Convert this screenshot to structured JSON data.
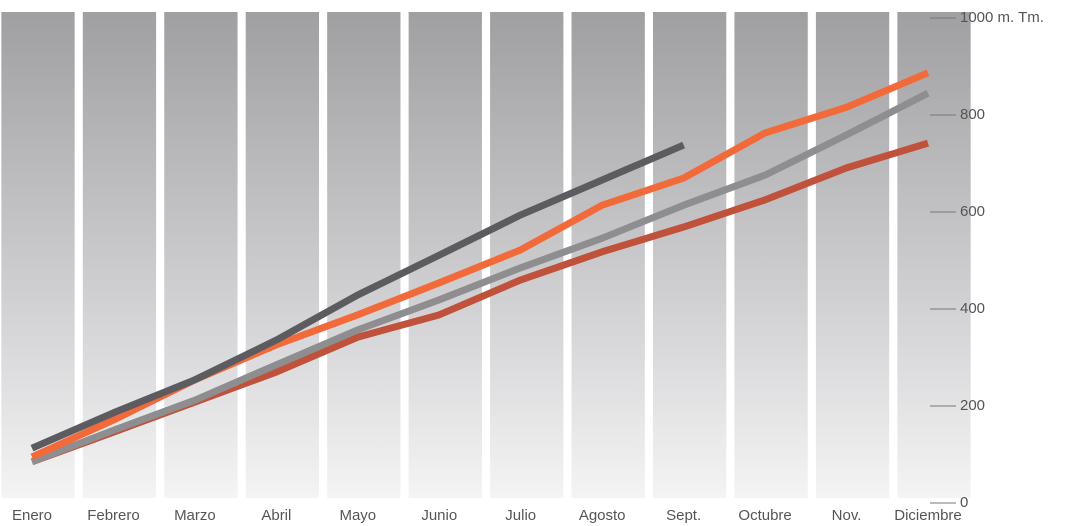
{
  "chart_data": {
    "type": "line",
    "categories": [
      "Enero",
      "Febrero",
      "Marzo",
      "Abril",
      "Mayo",
      "Junio",
      "Julio",
      "Agosto",
      "Sept.",
      "Octubre",
      "Nov.",
      "Diciembre"
    ],
    "series": [
      {
        "color": "#c0513a",
        "values": [
          85,
          146,
          208,
          270,
          342,
          388,
          460,
          518,
          569,
          625,
          691,
          742
        ]
      },
      {
        "color": "#8e8e90",
        "values": [
          85,
          150,
          212,
          285,
          357,
          419,
          485,
          546,
          614,
          676,
          759,
          845
        ]
      },
      {
        "color": "#f26a3a",
        "values": [
          95,
          171,
          254,
          326,
          388,
          454,
          522,
          614,
          670,
          763,
          816,
          887
        ]
      },
      {
        "color": "#5c5c60",
        "values": [
          113,
          186,
          254,
          336,
          429,
          511,
          594,
          666,
          738,
          null,
          null,
          null
        ]
      }
    ],
    "ylim": [
      0,
      1000
    ],
    "yticks": [
      0,
      200,
      400,
      600,
      800,
      {
        "value": 1000,
        "label": "1000 m. Tm."
      }
    ]
  }
}
